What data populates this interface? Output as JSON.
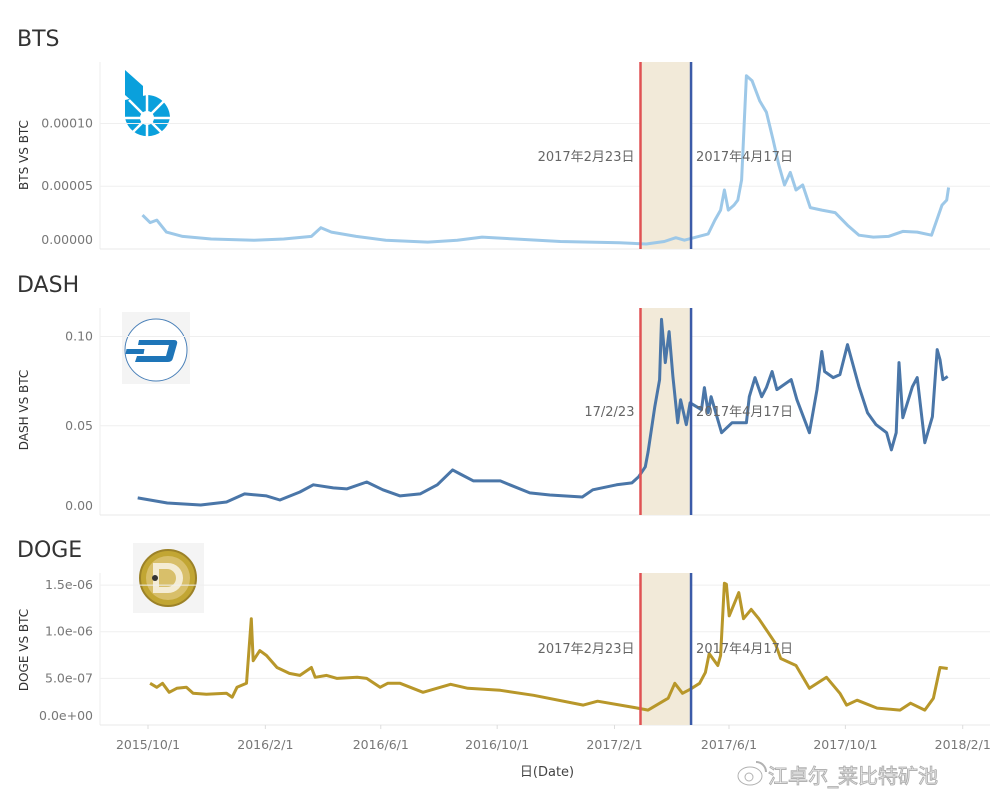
{
  "chart_data": [
    {
      "type": "line",
      "title": "BTS",
      "ylabel": "BTS VS BTC",
      "xlabel": "日(Date)",
      "ylim": [
        0,
        0.000149
      ],
      "yticks": [
        {
          "v": 0.0001,
          "label": "0.00010"
        },
        {
          "v": 5e-05,
          "label": "0.00005"
        },
        {
          "v": 0,
          "label": "0.00000"
        }
      ],
      "color": "#9dc8e8",
      "logo": "bitshares-logo",
      "band": {
        "start": "2017-02-23",
        "end": "2017-04-17",
        "color": "#f2ead9"
      },
      "ref_lines": [
        {
          "date": "2017-02-23",
          "label": "2017年2月23日",
          "color": "#e05254"
        },
        {
          "date": "2017-04-17",
          "label": "2017年4月17日",
          "color": "#3b5ba8"
        }
      ],
      "series": [
        {
          "points": [
            [
              "2015-09-20",
              2.7e-05
            ],
            [
              "2015-09-28",
              2.1e-05
            ],
            [
              "2015-10-05",
              2.3e-05
            ],
            [
              "2015-10-15",
              1.35e-05
            ],
            [
              "2015-11-01",
              1e-05
            ],
            [
              "2015-12-01",
              8e-06
            ],
            [
              "2016-01-15",
              7e-06
            ],
            [
              "2016-02-15",
              8e-06
            ],
            [
              "2016-03-15",
              1e-05
            ],
            [
              "2016-03-25",
              1.7e-05
            ],
            [
              "2016-04-05",
              1.35e-05
            ],
            [
              "2016-05-01",
              1e-05
            ],
            [
              "2016-06-01",
              7e-06
            ],
            [
              "2016-07-15",
              5.5e-06
            ],
            [
              "2016-08-15",
              7e-06
            ],
            [
              "2016-09-10",
              9.5e-06
            ],
            [
              "2016-10-15",
              8e-06
            ],
            [
              "2016-12-01",
              6e-06
            ],
            [
              "2017-01-01",
              5.5e-06
            ],
            [
              "2017-02-01",
              5e-06
            ],
            [
              "2017-03-01",
              4e-06
            ],
            [
              "2017-03-20",
              6e-06
            ],
            [
              "2017-04-01",
              9e-06
            ],
            [
              "2017-04-10",
              7e-06
            ],
            [
              "2017-04-25",
              1e-05
            ],
            [
              "2017-05-05",
              1.2e-05
            ],
            [
              "2017-05-12",
              2.3e-05
            ],
            [
              "2017-05-18",
              3.1e-05
            ],
            [
              "2017-05-22",
              4.7e-05
            ],
            [
              "2017-05-26",
              3.1e-05
            ],
            [
              "2017-06-01",
              3.5e-05
            ],
            [
              "2017-06-05",
              3.9e-05
            ],
            [
              "2017-06-09",
              5.5e-05
            ],
            [
              "2017-06-14",
              0.000138
            ],
            [
              "2017-06-20",
              0.000134
            ],
            [
              "2017-06-28",
              0.000118
            ],
            [
              "2017-07-05",
              0.000109
            ],
            [
              "2017-07-12",
              8.7e-05
            ],
            [
              "2017-07-18",
              6.7e-05
            ],
            [
              "2017-07-24",
              5.1e-05
            ],
            [
              "2017-07-30",
              6.1e-05
            ],
            [
              "2017-08-05",
              4.7e-05
            ],
            [
              "2017-08-12",
              5.1e-05
            ],
            [
              "2017-08-20",
              3.3e-05
            ],
            [
              "2017-09-01",
              3.1e-05
            ],
            [
              "2017-09-15",
              2.9e-05
            ],
            [
              "2017-09-28",
              1.9e-05
            ],
            [
              "2017-10-10",
              1.1e-05
            ],
            [
              "2017-10-25",
              9.5e-06
            ],
            [
              "2017-11-10",
              1e-05
            ],
            [
              "2017-11-25",
              1.4e-05
            ],
            [
              "2017-12-10",
              1.35e-05
            ],
            [
              "2017-12-25",
              1.1e-05
            ],
            [
              "2018-01-05",
              3.5e-05
            ],
            [
              "2018-01-10",
              3.9e-05
            ],
            [
              "2018-01-12",
              4.9e-05
            ]
          ]
        }
      ]
    },
    {
      "type": "line",
      "title": "DASH",
      "ylabel": "DASH VS BTC",
      "xlabel": "日(Date)",
      "ylim": [
        0,
        0.116
      ],
      "yticks": [
        {
          "v": 0.1,
          "label": "0.10"
        },
        {
          "v": 0.05,
          "label": "0.05"
        },
        {
          "v": 0,
          "label": "0.00"
        }
      ],
      "color": "#4a76a8",
      "logo": "dash-logo",
      "band": {
        "start": "2017-02-23",
        "end": "2017-04-17",
        "color": "#f2ead9"
      },
      "ref_lines": [
        {
          "date": "2017-02-23",
          "label": "17/2/23",
          "color": "#e05254"
        },
        {
          "date": "2017-04-17",
          "label": "2017年4月17日",
          "color": "#3b5ba8"
        }
      ],
      "series": [
        {
          "points": [
            [
              "2015-09-15",
              0.0096
            ],
            [
              "2015-10-16",
              0.0067
            ],
            [
              "2015-11-20",
              0.0056
            ],
            [
              "2015-12-17",
              0.0073
            ],
            [
              "2016-01-05",
              0.0118
            ],
            [
              "2016-01-28",
              0.0107
            ],
            [
              "2016-02-11",
              0.0084
            ],
            [
              "2016-03-03",
              0.0129
            ],
            [
              "2016-03-17",
              0.0169
            ],
            [
              "2016-04-07",
              0.0152
            ],
            [
              "2016-04-21",
              0.0146
            ],
            [
              "2016-05-12",
              0.0185
            ],
            [
              "2016-05-29",
              0.0141
            ],
            [
              "2016-06-16",
              0.0107
            ],
            [
              "2016-07-07",
              0.0118
            ],
            [
              "2016-07-25",
              0.0169
            ],
            [
              "2016-08-10",
              0.0253
            ],
            [
              "2016-08-18",
              0.023
            ],
            [
              "2016-09-01",
              0.0191
            ],
            [
              "2016-09-11",
              0.0191
            ],
            [
              "2016-09-29",
              0.0191
            ],
            [
              "2016-10-09",
              0.0169
            ],
            [
              "2016-10-30",
              0.0124
            ],
            [
              "2016-11-20",
              0.0112
            ],
            [
              "2016-12-24",
              0.0101
            ],
            [
              "2017-01-04",
              0.0141
            ],
            [
              "2017-01-29",
              0.0169
            ],
            [
              "2017-02-14",
              0.018
            ],
            [
              "2017-02-21",
              0.0214
            ],
            [
              "2017-02-28",
              0.027
            ],
            [
              "2017-03-03",
              0.0354
            ],
            [
              "2017-03-10",
              0.0607
            ],
            [
              "2017-03-15",
              0.0759
            ],
            [
              "2017-03-17",
              0.1096
            ],
            [
              "2017-03-21",
              0.0854
            ],
            [
              "2017-03-25",
              0.1028
            ],
            [
              "2017-03-29",
              0.0776
            ],
            [
              "2017-04-03",
              0.0517
            ],
            [
              "2017-04-06",
              0.0646
            ],
            [
              "2017-04-12",
              0.0506
            ],
            [
              "2017-04-16",
              0.0629
            ],
            [
              "2017-04-28",
              0.059
            ],
            [
              "2017-05-01",
              0.0714
            ],
            [
              "2017-05-05",
              0.0573
            ],
            [
              "2017-05-08",
              0.0663
            ],
            [
              "2017-05-19",
              0.0461
            ],
            [
              "2017-05-30",
              0.0517
            ],
            [
              "2017-06-14",
              0.0517
            ],
            [
              "2017-06-17",
              0.0663
            ],
            [
              "2017-06-23",
              0.077
            ],
            [
              "2017-06-30",
              0.0663
            ],
            [
              "2017-07-05",
              0.0714
            ],
            [
              "2017-07-11",
              0.0804
            ],
            [
              "2017-07-16",
              0.0703
            ],
            [
              "2017-07-31",
              0.0759
            ],
            [
              "2017-08-06",
              0.0646
            ],
            [
              "2017-08-19",
              0.0461
            ],
            [
              "2017-08-27",
              0.0703
            ],
            [
              "2017-09-01",
              0.0916
            ],
            [
              "2017-09-04",
              0.0804
            ],
            [
              "2017-09-13",
              0.077
            ],
            [
              "2017-09-20",
              0.0787
            ],
            [
              "2017-09-28",
              0.0955
            ],
            [
              "2017-10-10",
              0.0719
            ],
            [
              "2017-10-19",
              0.0573
            ],
            [
              "2017-10-28",
              0.0506
            ],
            [
              "2017-11-08",
              0.0461
            ],
            [
              "2017-11-13",
              0.0365
            ],
            [
              "2017-11-18",
              0.0461
            ],
            [
              "2017-11-21",
              0.0854
            ],
            [
              "2017-11-25",
              0.0545
            ],
            [
              "2017-12-05",
              0.0719
            ],
            [
              "2017-12-10",
              0.077
            ],
            [
              "2017-12-18",
              0.0405
            ],
            [
              "2017-12-26",
              0.0551
            ],
            [
              "2017-12-31",
              0.0927
            ],
            [
              "2018-01-03",
              0.0871
            ],
            [
              "2018-01-06",
              0.0759
            ],
            [
              "2018-01-11",
              0.0776
            ]
          ]
        }
      ]
    },
    {
      "type": "line",
      "title": "DOGE",
      "ylabel": "DOGE VS BTC",
      "xlabel": "日(Date)",
      "ylim": [
        0,
        1.63e-06
      ],
      "yticks": [
        {
          "v": 1.5e-06,
          "label": "1.5e-06"
        },
        {
          "v": 1e-06,
          "label": "1.0e-06"
        },
        {
          "v": 5e-07,
          "label": "5.0e-07"
        },
        {
          "v": 0,
          "label": "0.0e+00"
        }
      ],
      "color": "#b8972a",
      "logo": "dogecoin-logo",
      "band": {
        "start": "2017-02-23",
        "end": "2017-04-17",
        "color": "#f2ead9"
      },
      "ref_lines": [
        {
          "date": "2017-02-23",
          "label": "2017年2月23日",
          "color": "#e05254"
        },
        {
          "date": "2017-04-17",
          "label": "2017年4月17日",
          "color": "#3b5ba8"
        }
      ],
      "series": [
        {
          "points": [
            [
              "2015-09-28",
              4.47e-07
            ],
            [
              "2015-10-05",
              4.04e-07
            ],
            [
              "2015-10-11",
              4.47e-07
            ],
            [
              "2015-10-18",
              3.51e-07
            ],
            [
              "2015-10-26",
              3.94e-07
            ],
            [
              "2015-11-05",
              4.04e-07
            ],
            [
              "2015-11-12",
              3.4e-07
            ],
            [
              "2015-11-26",
              3.3e-07
            ],
            [
              "2015-12-17",
              3.4e-07
            ],
            [
              "2015-12-23",
              2.98e-07
            ],
            [
              "2015-12-28",
              4.04e-07
            ],
            [
              "2016-01-07",
              4.47e-07
            ],
            [
              "2016-01-12",
              1.14e-06
            ],
            [
              "2016-01-14",
              6.9e-07
            ],
            [
              "2016-01-21",
              7.98e-07
            ],
            [
              "2016-01-28",
              7.45e-07
            ],
            [
              "2016-02-08",
              6.17e-07
            ],
            [
              "2016-02-21",
              5.53e-07
            ],
            [
              "2016-03-03",
              5.32e-07
            ],
            [
              "2016-03-15",
              6.17e-07
            ],
            [
              "2016-03-19",
              5.11e-07
            ],
            [
              "2016-03-31",
              5.32e-07
            ],
            [
              "2016-04-11",
              5e-07
            ],
            [
              "2016-05-02",
              5.11e-07
            ],
            [
              "2016-05-12",
              5e-07
            ],
            [
              "2016-05-26",
              4.04e-07
            ],
            [
              "2016-06-03",
              4.47e-07
            ],
            [
              "2016-06-16",
              4.47e-07
            ],
            [
              "2016-07-10",
              3.51e-07
            ],
            [
              "2016-08-08",
              4.36e-07
            ],
            [
              "2016-08-26",
              3.94e-07
            ],
            [
              "2016-09-29",
              3.72e-07
            ],
            [
              "2016-11-03",
              3.19e-07
            ],
            [
              "2016-12-25",
              2.13e-07
            ],
            [
              "2017-01-09",
              2.55e-07
            ],
            [
              "2017-02-20",
              1.81e-07
            ],
            [
              "2017-03-03",
              1.6e-07
            ],
            [
              "2017-03-24",
              2.87e-07
            ],
            [
              "2017-03-31",
              4.47e-07
            ],
            [
              "2017-04-08",
              3.4e-07
            ],
            [
              "2017-04-16",
              3.83e-07
            ],
            [
              "2017-04-26",
              4.47e-07
            ],
            [
              "2017-05-02",
              5.64e-07
            ],
            [
              "2017-05-06",
              7.66e-07
            ],
            [
              "2017-05-15",
              6.38e-07
            ],
            [
              "2017-05-18",
              7.45e-07
            ],
            [
              "2017-05-22",
              1.52e-06
            ],
            [
              "2017-05-24",
              1.51e-06
            ],
            [
              "2017-05-27",
              1.17e-06
            ],
            [
              "2017-06-06",
              1.42e-06
            ],
            [
              "2017-06-11",
              1.14e-06
            ],
            [
              "2017-06-19",
              1.24e-06
            ],
            [
              "2017-06-27",
              1.14e-06
            ],
            [
              "2017-07-07",
              9.9e-07
            ],
            [
              "2017-07-14",
              8.83e-07
            ],
            [
              "2017-07-20",
              7.13e-07
            ],
            [
              "2017-08-05",
              6.38e-07
            ],
            [
              "2017-08-19",
              3.94e-07
            ],
            [
              "2017-09-06",
              5.11e-07
            ],
            [
              "2017-09-20",
              3.4e-07
            ],
            [
              "2017-09-27",
              2.13e-07
            ],
            [
              "2017-10-08",
              2.66e-07
            ],
            [
              "2017-10-29",
              1.81e-07
            ],
            [
              "2017-11-22",
              1.6e-07
            ],
            [
              "2017-12-03",
              2.34e-07
            ],
            [
              "2017-12-18",
              1.6e-07
            ],
            [
              "2017-12-27",
              2.87e-07
            ],
            [
              "2018-01-03",
              6.17e-07
            ],
            [
              "2018-01-11",
              6.06e-07
            ]
          ]
        }
      ]
    }
  ],
  "x_axis": {
    "title": "日(Date)",
    "ticks": [
      {
        "date": "2015-10-01",
        "label": "2015/10/1"
      },
      {
        "date": "2016-02-01",
        "label": "2016/2/1"
      },
      {
        "date": "2016-06-01",
        "label": "2016/6/1"
      },
      {
        "date": "2016-10-01",
        "label": "2016/10/1"
      },
      {
        "date": "2017-02-01",
        "label": "2017/2/1"
      },
      {
        "date": "2017-06-01",
        "label": "2017/6/1"
      },
      {
        "date": "2017-10-01",
        "label": "2017/10/1"
      },
      {
        "date": "2018-02-01",
        "label": "2018/2/1"
      }
    ]
  },
  "watermark": {
    "text": "江卓尔_莱比特矿池",
    "icon": "weibo-icon"
  }
}
